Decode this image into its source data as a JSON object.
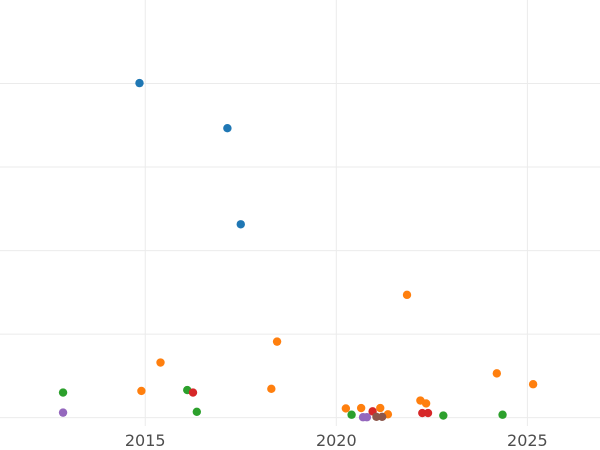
{
  "chart_data": {
    "type": "scatter",
    "title": "",
    "xlabel": "",
    "ylabel": "",
    "grid": true,
    "xlim": [
      2011.2,
      2026.9
    ],
    "ylim": [
      -0.02,
      1.0
    ],
    "x_ticks": [
      2015,
      2020,
      2025
    ],
    "x_tick_labels": [
      "2015",
      "2020",
      "2025"
    ],
    "y_gridlines": [
      0.0,
      0.2,
      0.4,
      0.6,
      0.8
    ],
    "series": [
      {
        "color": "#1f77b4",
        "points": [
          {
            "x": 2014.85,
            "y": 0.801
          },
          {
            "x": 2017.15,
            "y": 0.693
          },
          {
            "x": 2017.5,
            "y": 0.463
          }
        ]
      },
      {
        "color": "#ff7f0e",
        "points": [
          {
            "x": 2014.9,
            "y": 0.064
          },
          {
            "x": 2015.4,
            "y": 0.132
          },
          {
            "x": 2018.3,
            "y": 0.069
          },
          {
            "x": 2018.45,
            "y": 0.182
          },
          {
            "x": 2020.25,
            "y": 0.022
          },
          {
            "x": 2020.65,
            "y": 0.023
          },
          {
            "x": 2021.15,
            "y": 0.023
          },
          {
            "x": 2021.35,
            "y": 0.008
          },
          {
            "x": 2021.85,
            "y": 0.294
          },
          {
            "x": 2022.2,
            "y": 0.041
          },
          {
            "x": 2022.35,
            "y": 0.034
          },
          {
            "x": 2024.2,
            "y": 0.106
          },
          {
            "x": 2025.15,
            "y": 0.08
          }
        ]
      },
      {
        "color": "#2ca02c",
        "points": [
          {
            "x": 2012.85,
            "y": 0.06
          },
          {
            "x": 2016.1,
            "y": 0.066
          },
          {
            "x": 2016.35,
            "y": 0.014
          },
          {
            "x": 2020.4,
            "y": 0.007
          },
          {
            "x": 2022.8,
            "y": 0.005
          },
          {
            "x": 2024.35,
            "y": 0.007
          }
        ]
      },
      {
        "color": "#d62728",
        "points": [
          {
            "x": 2016.25,
            "y": 0.06
          },
          {
            "x": 2020.95,
            "y": 0.015
          },
          {
            "x": 2022.25,
            "y": 0.011
          },
          {
            "x": 2022.4,
            "y": 0.011
          }
        ]
      },
      {
        "color": "#9467bd",
        "points": [
          {
            "x": 2012.85,
            "y": 0.012
          },
          {
            "x": 2020.7,
            "y": 0.001
          },
          {
            "x": 2020.8,
            "y": 0.001
          }
        ]
      },
      {
        "color": "#8c564b",
        "points": [
          {
            "x": 2021.05,
            "y": 0.002
          },
          {
            "x": 2021.2,
            "y": 0.002
          }
        ]
      }
    ]
  }
}
